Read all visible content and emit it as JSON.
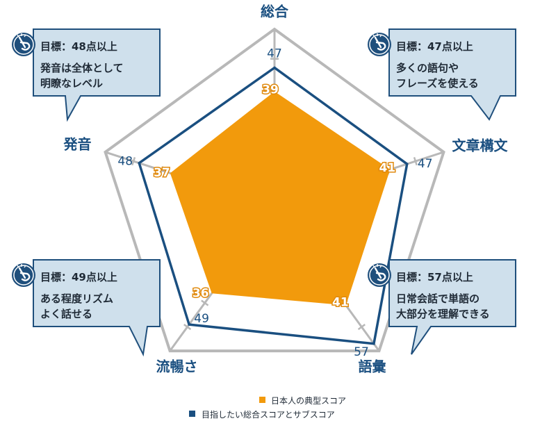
{
  "chart_data": {
    "type": "radar",
    "categories": [
      "総合",
      "文章構文",
      "語彙",
      "流暢さ",
      "発音"
    ],
    "rmax": 60,
    "series": [
      {
        "name": "日本人の典型スコア",
        "values": [
          39,
          41,
          41,
          36,
          37
        ],
        "color": "#f29a0c"
      },
      {
        "name": "目指したい総合スコアとサブスコア",
        "values": [
          47,
          47,
          57,
          49,
          48
        ],
        "color": "#1a4f80"
      }
    ],
    "legend": [
      {
        "label": "日本人の典型スコア",
        "color": "#f29a0c"
      },
      {
        "label": "目指したい総合スコアとサブスコア",
        "color": "#1a4f80"
      }
    ]
  },
  "callouts": [
    {
      "lines": [
        "目標：48点以上",
        "発音は全体として",
        "明瞭なレベル"
      ]
    },
    {
      "lines": [
        "目標：47点以上",
        "多くの語句や",
        "フレーズを使える"
      ]
    },
    {
      "lines": [
        "目標：49点以上",
        "ある程度リズム",
        "よく話せる"
      ]
    },
    {
      "lines": [
        "目標：57点以上",
        "日常会話で単語の",
        "大部分を理解できる"
      ]
    }
  ],
  "colors": {
    "grid": "#b8b8b8",
    "callout_bg": "#cfe0ec",
    "callout_border": "#1f4f7c",
    "icon": "pointing-hand-icon"
  }
}
